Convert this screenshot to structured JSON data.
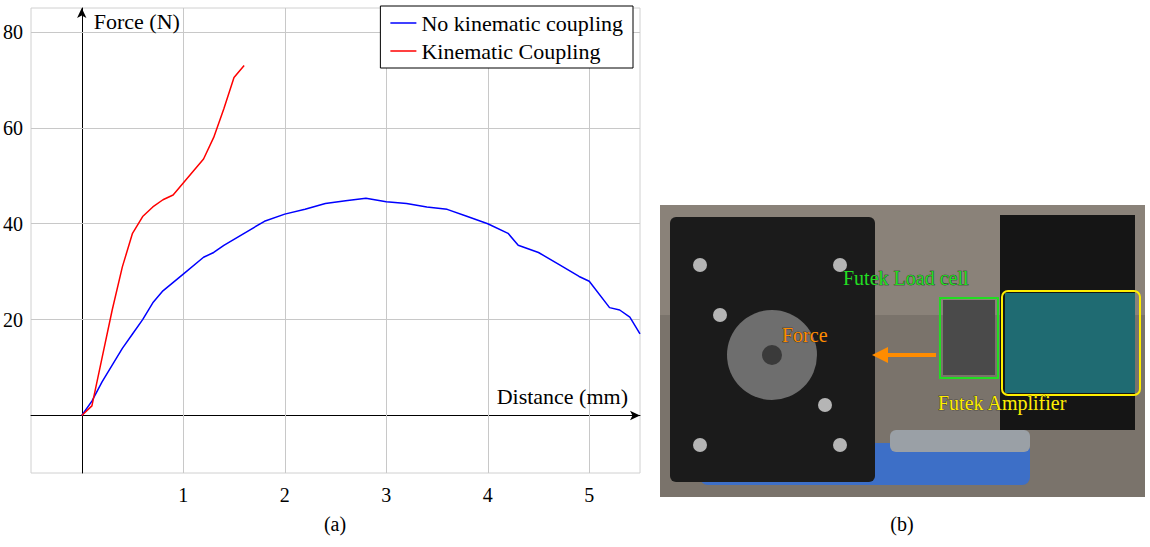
{
  "chart_data": {
    "type": "line",
    "x_label": "Distance (mm)",
    "y_label": "Force (N)",
    "xlim": [
      -0.5,
      5.5
    ],
    "ylim": [
      -12,
      85
    ],
    "xticks": [
      1,
      2,
      3,
      4,
      5
    ],
    "yticks": [
      20,
      40,
      60,
      80
    ],
    "grid": true,
    "legend": "top-right",
    "series": [
      {
        "name": "No kinematic coupling",
        "color": "#0000ff",
        "x": [
          0,
          0.1,
          0.2,
          0.3,
          0.4,
          0.5,
          0.6,
          0.7,
          0.8,
          1.0,
          1.2,
          1.3,
          1.4,
          1.6,
          1.8,
          2.0,
          2.2,
          2.4,
          2.6,
          2.8,
          3.0,
          3.2,
          3.4,
          3.6,
          3.8,
          4.0,
          4.2,
          4.3,
          4.5,
          4.7,
          4.9,
          5.0,
          5.2,
          5.3,
          5.4,
          5.5
        ],
        "values": [
          0,
          3,
          7,
          10.5,
          14,
          17,
          20,
          23.5,
          26,
          29.5,
          33,
          34,
          35.5,
          38,
          40.5,
          42,
          43,
          44.2,
          44.8,
          45.3,
          44.6,
          44.2,
          43.5,
          43,
          41.5,
          40,
          38,
          35.5,
          34,
          31.5,
          29,
          28,
          22.5,
          22,
          20.5,
          17
        ]
      },
      {
        "name": "Kinematic Coupling",
        "color": "#ff0000",
        "x": [
          0,
          0.1,
          0.2,
          0.3,
          0.4,
          0.5,
          0.6,
          0.7,
          0.8,
          0.9,
          1.0,
          1.1,
          1.2,
          1.3,
          1.4,
          1.5,
          1.6
        ],
        "values": [
          0,
          2,
          12,
          22,
          31,
          38,
          41.5,
          43.5,
          45,
          46,
          48.5,
          51,
          53.5,
          58,
          64,
          70.5,
          73
        ]
      }
    ]
  },
  "photo": {
    "labels": [
      {
        "text": "Futek Load cell",
        "color": "#22dd22"
      },
      {
        "text": "Force",
        "color": "#ff8c00"
      },
      {
        "text": "Futek Amplifier",
        "color": "#ffee00"
      }
    ]
  },
  "captions": {
    "chart": "(a)",
    "photo": "(b)"
  }
}
